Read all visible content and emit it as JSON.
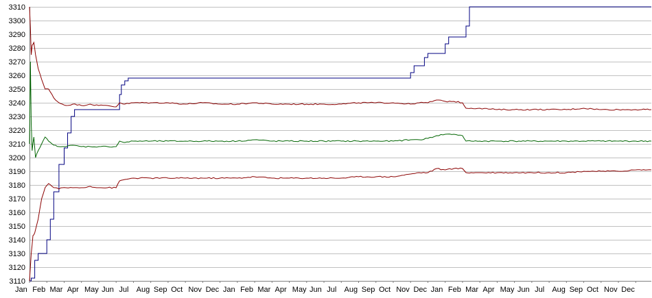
{
  "chart_data": {
    "type": "line",
    "title": "",
    "xlabel": "",
    "ylabel": "",
    "ylim": [
      3110,
      3310
    ],
    "yticks": [
      3110,
      3120,
      3130,
      3140,
      3150,
      3160,
      3170,
      3180,
      3190,
      3200,
      3210,
      3220,
      3230,
      3240,
      3250,
      3260,
      3270,
      3280,
      3290,
      3300,
      3310
    ],
    "grid": true,
    "legend": "none",
    "x_range": [
      0,
      35.9
    ],
    "x_ticks": [
      {
        "x": 0,
        "label": "Jan"
      },
      {
        "x": 1,
        "label": "Feb"
      },
      {
        "x": 2,
        "label": "Mar"
      },
      {
        "x": 3,
        "label": "Apr"
      },
      {
        "x": 4,
        "label": "May"
      },
      {
        "x": 5,
        "label": "Jun"
      },
      {
        "x": 6,
        "label": "Jul"
      },
      {
        "x": 7,
        "label": "Aug"
      },
      {
        "x": 8,
        "label": "Sep"
      },
      {
        "x": 9,
        "label": "Oct"
      },
      {
        "x": 10,
        "label": "Nov"
      },
      {
        "x": 11,
        "label": "Dec"
      },
      {
        "x": 12,
        "label": "Jan"
      },
      {
        "x": 13,
        "label": "Feb"
      },
      {
        "x": 14,
        "label": "Mar"
      },
      {
        "x": 15,
        "label": "Apr"
      },
      {
        "x": 16,
        "label": "May"
      },
      {
        "x": 17,
        "label": "Jun"
      },
      {
        "x": 18,
        "label": "Jul"
      },
      {
        "x": 19,
        "label": "Aug"
      },
      {
        "x": 20,
        "label": "Sep"
      },
      {
        "x": 21,
        "label": "Oct"
      },
      {
        "x": 22,
        "label": "Nov"
      },
      {
        "x": 23,
        "label": "Dec"
      },
      {
        "x": 24,
        "label": "Jan"
      },
      {
        "x": 25,
        "label": "Feb"
      },
      {
        "x": 26,
        "label": "Mar"
      },
      {
        "x": 27,
        "label": "Apr"
      },
      {
        "x": 28,
        "label": "May"
      },
      {
        "x": 29,
        "label": "Jun"
      },
      {
        "x": 30,
        "label": "Jul"
      },
      {
        "x": 31,
        "label": "Aug"
      },
      {
        "x": 32,
        "label": "Sep"
      },
      {
        "x": 33,
        "label": "Oct"
      },
      {
        "x": 34,
        "label": "Nov"
      },
      {
        "x": 35,
        "label": "Dec"
      }
    ],
    "series": [
      {
        "color": "#000080",
        "x": [
          0,
          0.1,
          0.3,
          0.5,
          0.8,
          1.0,
          1.2,
          1.4,
          1.7,
          2.0,
          2.2,
          2.4,
          2.6,
          2.8,
          3.0,
          3.2,
          3.5,
          4.0,
          4.5,
          5.0,
          5.2,
          5.3,
          5.5,
          5.7,
          5.9,
          6.5,
          8,
          10,
          12,
          14,
          16,
          18,
          20,
          21.8,
          22.0,
          22.2,
          22.6,
          22.8,
          23.0,
          23.8,
          24.0,
          24.2,
          25.0,
          25.2,
          25.4,
          26,
          28,
          30,
          32,
          34,
          35.9
        ],
        "values": [
          3110,
          3112,
          3125,
          3130,
          3130,
          3140,
          3155,
          3175,
          3195,
          3207,
          3218,
          3230,
          3235,
          3235,
          3235,
          3235,
          3235,
          3235,
          3235,
          3235,
          3246,
          3253,
          3256,
          3258,
          3258,
          3258,
          3258,
          3258,
          3258,
          3258,
          3258,
          3258,
          3258,
          3258,
          3262,
          3267,
          3267,
          3273,
          3276,
          3276,
          3283,
          3288,
          3288,
          3296,
          3310,
          3310,
          3310,
          3310,
          3310,
          3310,
          3310
        ]
      },
      {
        "color": "#8b0000",
        "x": [
          0,
          0.05,
          0.1,
          0.15,
          0.25,
          0.35,
          0.5,
          0.7,
          0.9,
          1.1,
          1.3,
          1.5,
          1.7,
          1.9,
          2.1,
          2.5,
          3.0,
          3.5,
          4.0,
          4.5,
          5.0,
          5.2,
          5.5,
          6,
          7,
          8,
          9,
          10,
          11,
          12,
          13,
          14,
          15,
          16,
          17,
          18,
          19,
          20,
          21,
          22,
          22.5,
          23,
          23.5,
          24,
          24.5,
          25,
          25.2,
          25.5,
          26,
          27,
          28,
          29,
          30,
          31,
          32,
          33,
          34,
          35,
          35.9
        ],
        "values": [
          3310,
          3295,
          3275,
          3282,
          3284,
          3275,
          3265,
          3257,
          3250,
          3250,
          3246,
          3242,
          3240,
          3239,
          3238,
          3239,
          3238,
          3239,
          3238,
          3238,
          3237,
          3240,
          3239,
          3240,
          3240,
          3240,
          3239,
          3240,
          3239,
          3239,
          3240,
          3239,
          3239,
          3239,
          3239,
          3239,
          3240,
          3240,
          3240,
          3239,
          3240,
          3240,
          3242,
          3241,
          3241,
          3240,
          3236,
          3236,
          3236,
          3235,
          3235,
          3235,
          3235,
          3235,
          3236,
          3235,
          3235,
          3235,
          3235
        ]
      },
      {
        "color": "#006400",
        "x": [
          0,
          0.05,
          0.1,
          0.15,
          0.25,
          0.35,
          0.5,
          0.7,
          0.9,
          1.1,
          1.3,
          1.5,
          1.7,
          1.9,
          2.1,
          2.5,
          3.0,
          3.5,
          4.0,
          4.5,
          5.0,
          5.2,
          5.5,
          6,
          7,
          8,
          9,
          10,
          11,
          12,
          13,
          14,
          15,
          16,
          17,
          18,
          19,
          20,
          21,
          22,
          22.5,
          23,
          23.5,
          24,
          24.5,
          25,
          25.2,
          25.5,
          26,
          27,
          28,
          29,
          30,
          31,
          32,
          33,
          34,
          35,
          35.9
        ],
        "values": [
          3210,
          3270,
          3225,
          3205,
          3215,
          3200,
          3205,
          3210,
          3215,
          3212,
          3210,
          3209,
          3208,
          3208,
          3208,
          3209,
          3208,
          3208,
          3208,
          3208,
          3208,
          3212,
          3211,
          3212,
          3212,
          3212,
          3212,
          3212,
          3212,
          3212,
          3213,
          3212,
          3212,
          3212,
          3212,
          3212,
          3212,
          3212,
          3212,
          3213,
          3213,
          3214,
          3216,
          3217,
          3217,
          3216,
          3212,
          3212,
          3212,
          3212,
          3212,
          3212,
          3212,
          3212,
          3212,
          3212,
          3212,
          3212,
          3212
        ]
      },
      {
        "color": "#8b0000",
        "x": [
          0,
          0.1,
          0.2,
          0.3,
          0.5,
          0.7,
          0.9,
          1.1,
          1.3,
          1.5,
          1.7,
          1.9,
          2.1,
          2.5,
          3.0,
          3.5,
          4.0,
          4.5,
          5.0,
          5.2,
          5.5,
          6,
          7,
          8,
          9,
          10,
          11,
          12,
          13,
          14,
          15,
          16,
          17,
          18,
          19,
          20,
          21,
          22,
          22.5,
          23,
          23.5,
          24,
          24.5,
          25,
          25.2,
          25.5,
          26,
          27,
          28,
          29,
          30,
          31,
          32,
          33,
          34,
          35,
          35.9
        ],
        "values": [
          3110,
          3130,
          3143,
          3145,
          3155,
          3170,
          3178,
          3181,
          3179,
          3178,
          3177,
          3178,
          3178,
          3178,
          3178,
          3179,
          3178,
          3178,
          3178,
          3183,
          3184,
          3185,
          3185,
          3185,
          3185,
          3185,
          3185,
          3185,
          3186,
          3185,
          3185,
          3185,
          3185,
          3185,
          3186,
          3186,
          3186,
          3188,
          3189,
          3189,
          3192,
          3191,
          3192,
          3192,
          3189,
          3189,
          3189,
          3189,
          3189,
          3189,
          3189,
          3189,
          3190,
          3190,
          3190,
          3191,
          3191
        ]
      }
    ]
  }
}
